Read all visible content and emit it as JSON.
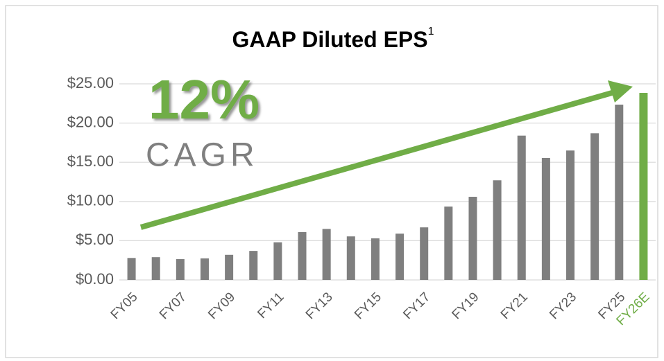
{
  "chart_data": {
    "type": "bar",
    "title": "GAAP Diluted EPS",
    "title_note": "1",
    "annotations": [
      "12%",
      "CAGR"
    ],
    "categories": [
      "FY05",
      null,
      "FY07",
      null,
      "FY09",
      null,
      "FY11",
      null,
      "FY13",
      null,
      "FY15",
      null,
      "FY17",
      null,
      "FY19",
      null,
      "FY21",
      null,
      "FY23",
      null,
      "FY25",
      "FY26E"
    ],
    "values": [
      2.8,
      2.9,
      2.65,
      2.75,
      3.2,
      3.7,
      4.8,
      6.1,
      6.5,
      5.55,
      5.3,
      5.9,
      6.7,
      9.35,
      10.6,
      12.7,
      18.4,
      15.55,
      16.5,
      18.7,
      22.35,
      23.85
    ],
    "colors": [
      "#7f7f7f",
      "#7f7f7f",
      "#7f7f7f",
      "#7f7f7f",
      "#7f7f7f",
      "#7f7f7f",
      "#7f7f7f",
      "#7f7f7f",
      "#7f7f7f",
      "#7f7f7f",
      "#7f7f7f",
      "#7f7f7f",
      "#7f7f7f",
      "#7f7f7f",
      "#7f7f7f",
      "#7f7f7f",
      "#7f7f7f",
      "#7f7f7f",
      "#7f7f7f",
      "#7f7f7f",
      "#7f7f7f",
      "#70ad47"
    ],
    "ylim": [
      0,
      25
    ],
    "yticks": [
      {
        "value": 0,
        "label": "$0.00"
      },
      {
        "value": 5,
        "label": "$5.00"
      },
      {
        "value": 10,
        "label": "$10.00"
      },
      {
        "value": 15,
        "label": "$15.00"
      },
      {
        "value": 20,
        "label": "$20.00"
      },
      {
        "value": 25,
        "label": "$25.00"
      }
    ],
    "grid": true
  }
}
